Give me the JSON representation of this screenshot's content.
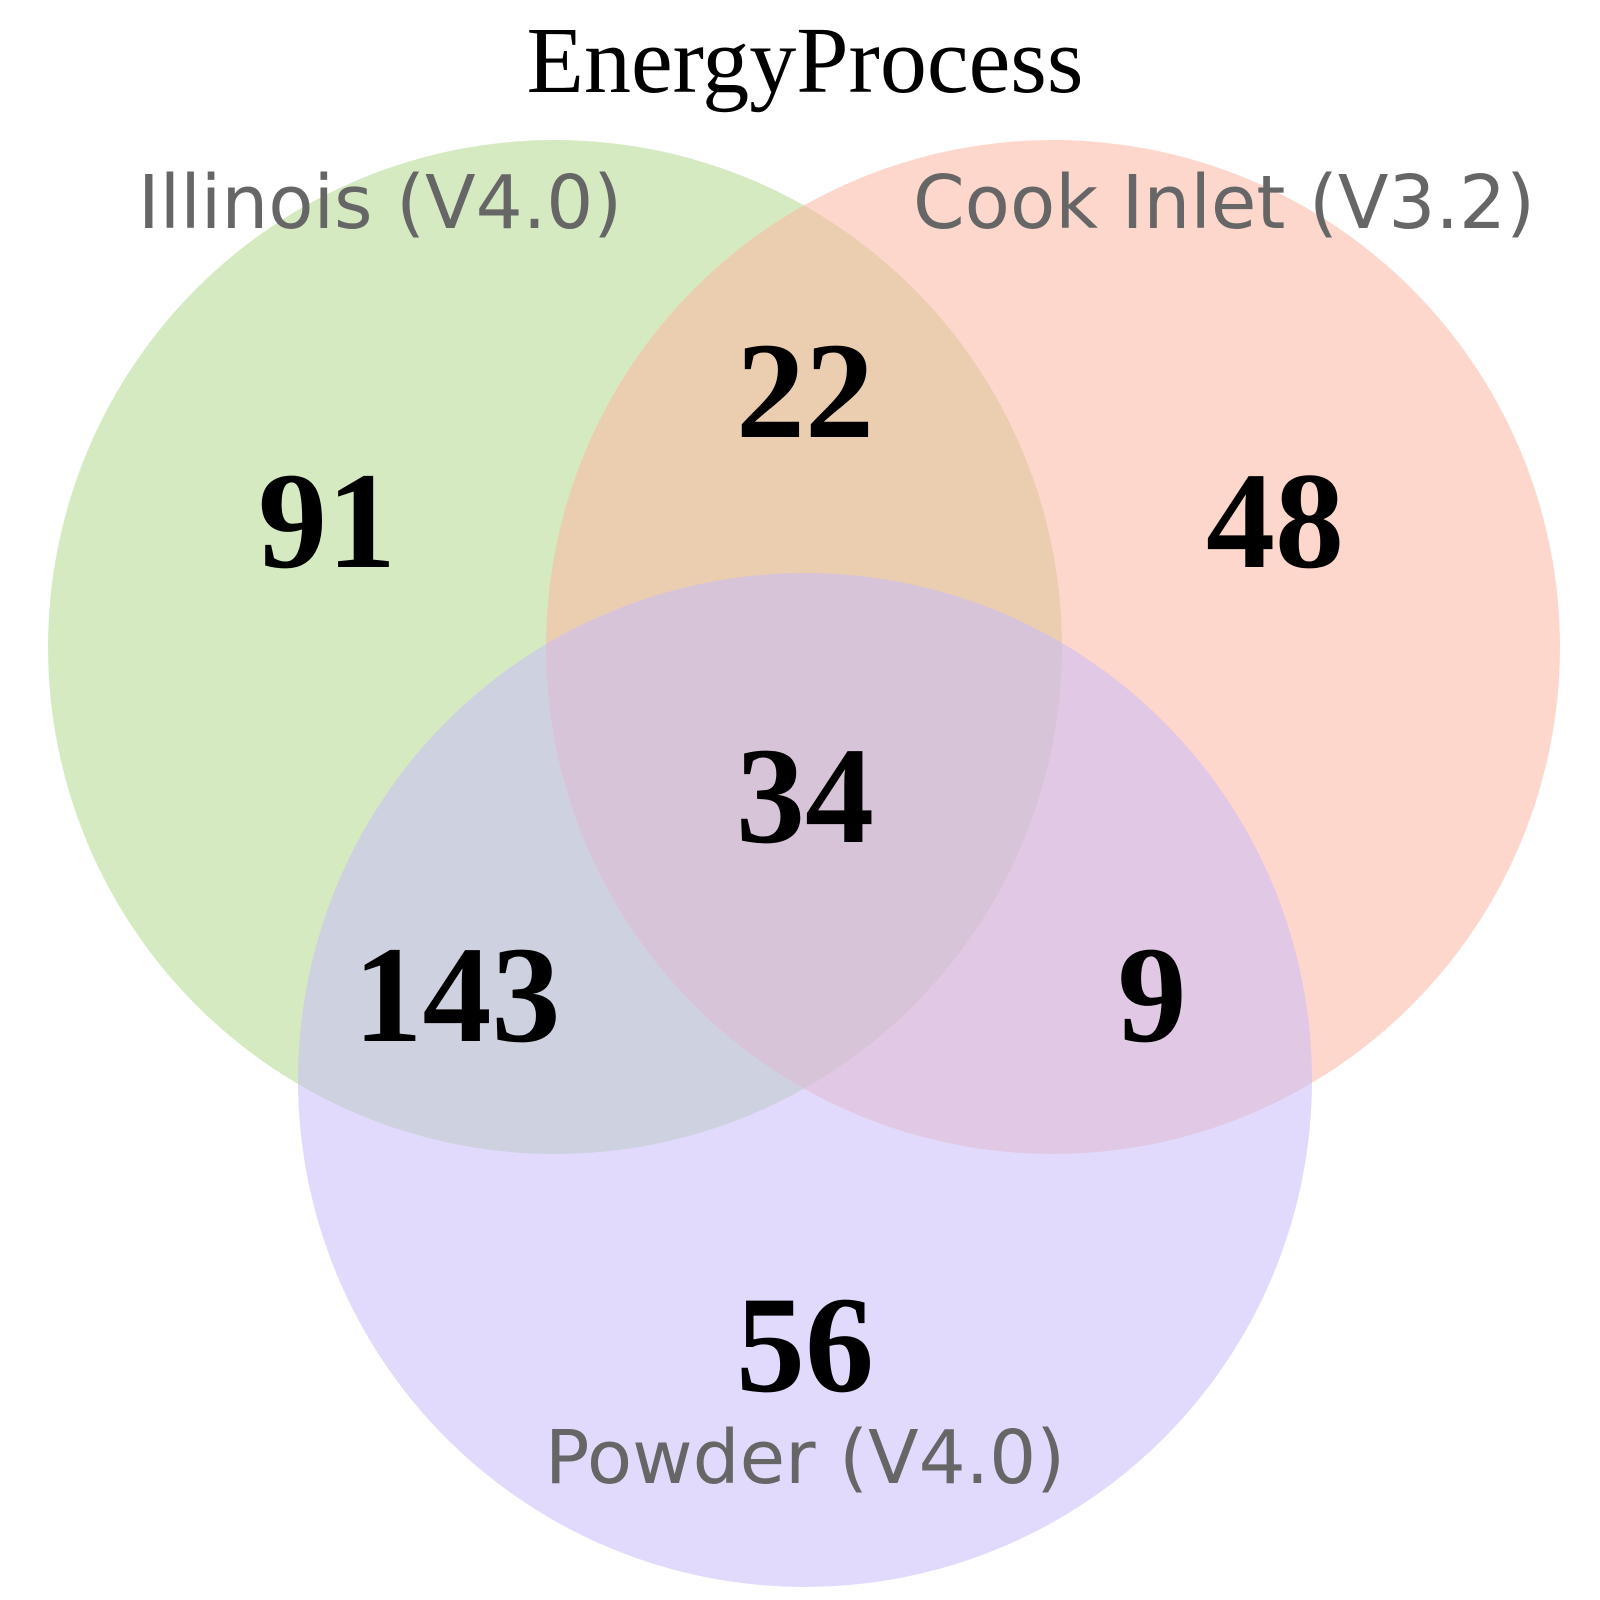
{
  "title": "EnergyProcess",
  "sets": [
    {
      "key": "A",
      "label": "Illinois (V4.0)",
      "color": "#b5d88f",
      "opacity": 0.55
    },
    {
      "key": "B",
      "label": "Cook Inlet (V3.2)",
      "color": "#fdb7a3",
      "opacity": 0.55
    },
    {
      "key": "C",
      "label": "Powder (V4.0)",
      "color": "#c9bcf9",
      "opacity": 0.55
    }
  ],
  "regions": {
    "A_only": "91",
    "B_only": "48",
    "C_only": "56",
    "AB_only": "22",
    "AC_only": "143",
    "BC_only": "9",
    "ABC": "34"
  }
}
